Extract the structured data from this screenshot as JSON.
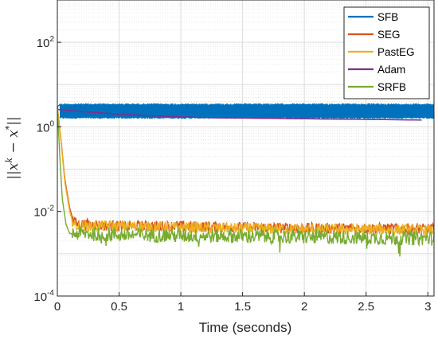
{
  "chart_data": {
    "type": "line",
    "xlabel": "Time (seconds)",
    "ylabel": "||x^k - x*||",
    "ylabel_parts": {
      "bars_open": "||",
      "x1": "x",
      "k": "k",
      "minus": " − ",
      "x2": "x",
      "star": "*",
      "bars_close": "||"
    },
    "x_scale": "linear",
    "y_scale": "log",
    "xlim": [
      0,
      3.05
    ],
    "ylim": [
      0.0001,
      1000
    ],
    "grid": true,
    "minor_grid": true,
    "legend_position": "top-right",
    "xticks": [
      {
        "value": 0,
        "label": "0"
      },
      {
        "value": 0.5,
        "label": "0.5"
      },
      {
        "value": 1,
        "label": "1"
      },
      {
        "value": 1.5,
        "label": "1.5"
      },
      {
        "value": 2,
        "label": "2"
      },
      {
        "value": 2.5,
        "label": "2.5"
      },
      {
        "value": 3,
        "label": "3"
      }
    ],
    "yticks": [
      {
        "value": 0.0001,
        "base": "10",
        "exp": "-4"
      },
      {
        "value": 0.01,
        "base": "10",
        "exp": "-2"
      },
      {
        "value": 1,
        "base": "10",
        "exp": "0"
      },
      {
        "value": 100,
        "base": "10",
        "exp": "2"
      }
    ],
    "series": [
      {
        "name": "SFB",
        "color": "#0072BD",
        "x": [
          0,
          0.02,
          0.5,
          1.0,
          1.5,
          2.0,
          2.5,
          3.05
        ],
        "y": [
          3.0,
          2.3,
          2.3,
          2.3,
          2.3,
          2.3,
          2.3,
          2.3
        ],
        "band_low": 1.55,
        "band_high": 3.6
      },
      {
        "name": "SEG",
        "color": "#D95319",
        "x": [
          0,
          0.03,
          0.06,
          0.1,
          0.13,
          0.16,
          0.2,
          0.5,
          1.0,
          1.5,
          2.0,
          2.5,
          3.05
        ],
        "y": [
          3.0,
          0.5,
          0.06,
          0.012,
          0.006,
          0.005,
          0.005,
          0.0045,
          0.0045,
          0.0042,
          0.004,
          0.004,
          0.0038
        ]
      },
      {
        "name": "PastEG",
        "color": "#EDB120",
        "x": [
          0,
          0.03,
          0.06,
          0.1,
          0.13,
          0.16,
          0.2,
          0.5,
          1.0,
          1.5,
          2.0,
          2.5,
          3.05
        ],
        "y": [
          3.0,
          0.45,
          0.05,
          0.01,
          0.005,
          0.0045,
          0.0045,
          0.0045,
          0.0042,
          0.004,
          0.0038,
          0.0038,
          0.0036
        ]
      },
      {
        "name": "Adam",
        "color": "#7E2F8E",
        "x": [
          0,
          0.05,
          0.2,
          0.5,
          0.8,
          1.2,
          1.6,
          2.0,
          2.5,
          2.95
        ],
        "y": [
          2.6,
          2.5,
          2.3,
          2.0,
          1.8,
          1.65,
          1.6,
          1.55,
          1.5,
          1.45
        ]
      },
      {
        "name": "SRFB",
        "color": "#77AC30",
        "x": [
          0,
          0.02,
          0.04,
          0.07,
          0.1,
          0.2,
          0.5,
          1.0,
          1.5,
          2.0,
          2.5,
          3.05
        ],
        "y": [
          3.0,
          0.2,
          0.02,
          0.005,
          0.003,
          0.003,
          0.0028,
          0.0027,
          0.0026,
          0.0025,
          0.0024,
          0.0023
        ]
      }
    ]
  }
}
